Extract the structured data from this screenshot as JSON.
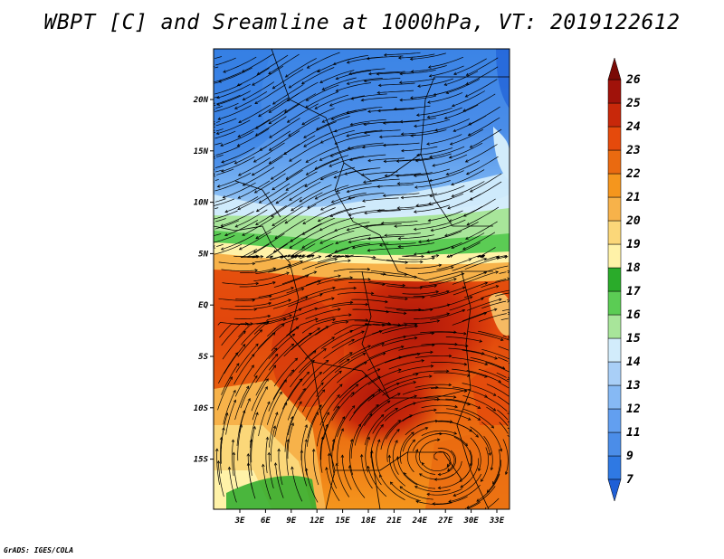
{
  "title": "WBPT [C] and Sreamline at 1000hPa, VT: 2019122612",
  "footer": "GrADS: IGES/COLA",
  "colors": {
    "c7": "#1f5fd6",
    "c9": "#2f79e3",
    "c11": "#4b8de8",
    "c12": "#629ff0",
    "c13": "#86b9f4",
    "c14": "#a9cff7",
    "c15": "#d2ecfb",
    "c16": "#a8e59a",
    "c17": "#5bcc54",
    "c18": "#2aab2a",
    "c19": "#fff2a8",
    "c20": "#fbd779",
    "c21": "#f7b24a",
    "c22": "#f5961d",
    "c23": "#ea6a10",
    "c24": "#e54a0c",
    "c25": "#c8280a",
    "c26": "#a0120a"
  },
  "colorbar": {
    "labels": [
      "7",
      "9",
      "11",
      "12",
      "13",
      "14",
      "15",
      "16",
      "17",
      "18",
      "19",
      "20",
      "21",
      "22",
      "23",
      "24",
      "25",
      "26"
    ]
  },
  "axes": {
    "x_labels": [
      "3E",
      "6E",
      "9E",
      "12E",
      "15E",
      "18E",
      "21E",
      "24E",
      "27E",
      "30E",
      "33E"
    ],
    "y_labels": [
      "20N",
      "15N",
      "10N",
      "5N",
      "EQ",
      "5S",
      "10S",
      "15S"
    ]
  }
}
